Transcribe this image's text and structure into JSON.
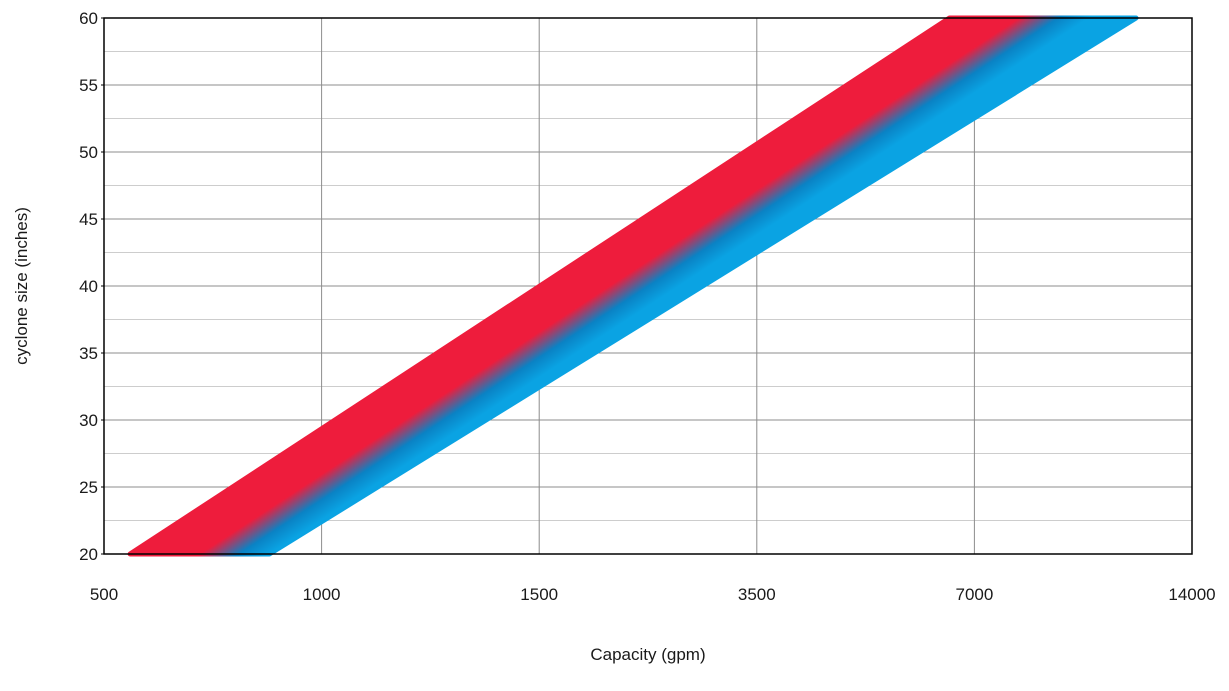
{
  "chart_data": {
    "type": "area",
    "title": "",
    "xlabel": "Capacity (gpm)",
    "ylabel": "cyclone size (inches)",
    "x_tick_labels": [
      "500",
      "1000",
      "1500",
      "3500",
      "7000",
      "14000"
    ],
    "y_ticks": [
      20,
      25,
      30,
      35,
      40,
      45,
      50,
      55,
      60
    ],
    "ylim": [
      20,
      60
    ],
    "grid": true,
    "minor_y_grid": true,
    "legend": "none",
    "band": {
      "description_note": "",
      "upper_edge": {
        "capacity": [
          560,
          6600
        ],
        "size": [
          20,
          60
        ]
      },
      "lower_edge": {
        "capacity": [
          880,
          12200
        ],
        "size": [
          20,
          60
        ]
      }
    },
    "colors": {
      "high": "#ee1c3c",
      "mid": "#0a82c4",
      "low": "#0aa3e3"
    }
  }
}
